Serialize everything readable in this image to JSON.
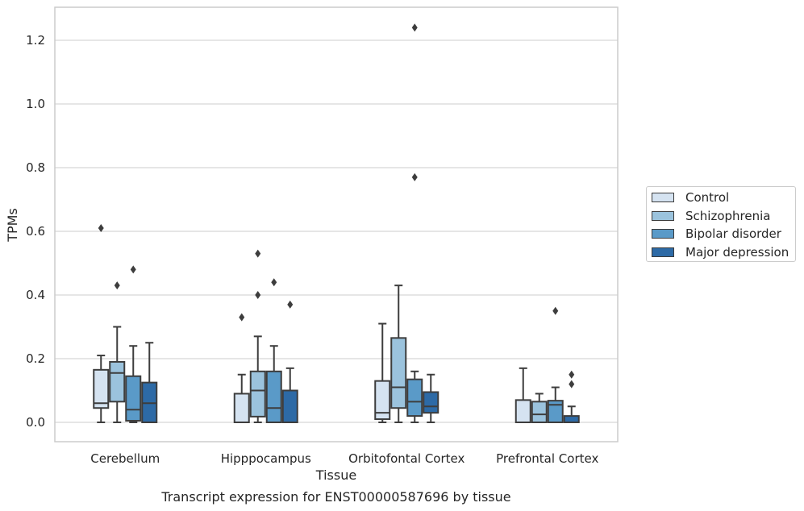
{
  "chart_data": {
    "type": "box",
    "ylabel": "TPMs",
    "xlabel": "Tissue",
    "caption": "Transcript expression for ENST00000587696 by tissue",
    "ylim": [
      -0.06,
      1.3
    ],
    "yticks": [
      "0.0",
      "0.2",
      "0.4",
      "0.6",
      "0.8",
      "1.0",
      "1.2"
    ],
    "grid": true,
    "legend_position": "right",
    "categories": [
      "Cerebellum",
      "Hipppocampus",
      "Orbitofontal Cortex",
      "Prefrontal Cortex"
    ],
    "series": [
      {
        "name": "Control",
        "color": "#d5e3f1",
        "boxes": [
          {
            "whislo": 0.0,
            "q1": 0.045,
            "med": 0.06,
            "q3": 0.165,
            "whishi": 0.21,
            "fliers": [
              0.61
            ]
          },
          {
            "whislo": 0.0,
            "q1": 0.0,
            "med": 0.0,
            "q3": 0.09,
            "whishi": 0.15,
            "fliers": [
              0.33
            ]
          },
          {
            "whislo": 0.0,
            "q1": 0.01,
            "med": 0.03,
            "q3": 0.13,
            "whishi": 0.31,
            "fliers": []
          },
          {
            "whislo": 0.0,
            "q1": 0.0,
            "med": 0.0,
            "q3": 0.07,
            "whishi": 0.17,
            "fliers": []
          }
        ]
      },
      {
        "name": "Schizophrenia",
        "color": "#9bc3dd",
        "boxes": [
          {
            "whislo": 0.0,
            "q1": 0.065,
            "med": 0.155,
            "q3": 0.19,
            "whishi": 0.3,
            "fliers": [
              0.43
            ]
          },
          {
            "whislo": 0.0,
            "q1": 0.018,
            "med": 0.1,
            "q3": 0.16,
            "whishi": 0.27,
            "fliers": [
              0.4,
              0.53
            ]
          },
          {
            "whislo": 0.0,
            "q1": 0.045,
            "med": 0.11,
            "q3": 0.265,
            "whishi": 0.43,
            "fliers": []
          },
          {
            "whislo": 0.0,
            "q1": 0.0,
            "med": 0.025,
            "q3": 0.065,
            "whishi": 0.09,
            "fliers": []
          }
        ]
      },
      {
        "name": "Bipolar disorder",
        "color": "#5a9ac8",
        "boxes": [
          {
            "whislo": 0.0,
            "q1": 0.005,
            "med": 0.04,
            "q3": 0.145,
            "whishi": 0.24,
            "fliers": [
              0.48
            ]
          },
          {
            "whislo": 0.0,
            "q1": 0.0,
            "med": 0.045,
            "q3": 0.16,
            "whishi": 0.24,
            "fliers": [
              0.44
            ]
          },
          {
            "whislo": 0.0,
            "q1": 0.02,
            "med": 0.065,
            "q3": 0.135,
            "whishi": 0.16,
            "fliers": [
              0.77,
              1.24
            ]
          },
          {
            "whislo": 0.0,
            "q1": 0.0,
            "med": 0.055,
            "q3": 0.068,
            "whishi": 0.11,
            "fliers": [
              0.35
            ]
          }
        ]
      },
      {
        "name": "Major depression",
        "color": "#2d6aa6",
        "boxes": [
          {
            "whislo": 0.0,
            "q1": 0.0,
            "med": 0.06,
            "q3": 0.125,
            "whishi": 0.25,
            "fliers": []
          },
          {
            "whislo": 0.0,
            "q1": 0.0,
            "med": 0.0,
            "q3": 0.1,
            "whishi": 0.17,
            "fliers": [
              0.37
            ]
          },
          {
            "whislo": 0.0,
            "q1": 0.03,
            "med": 0.05,
            "q3": 0.095,
            "whishi": 0.15,
            "fliers": []
          },
          {
            "whislo": 0.0,
            "q1": 0.0,
            "med": 0.0,
            "q3": 0.02,
            "whishi": 0.05,
            "fliers": [
              0.12,
              0.15
            ]
          }
        ]
      }
    ]
  }
}
